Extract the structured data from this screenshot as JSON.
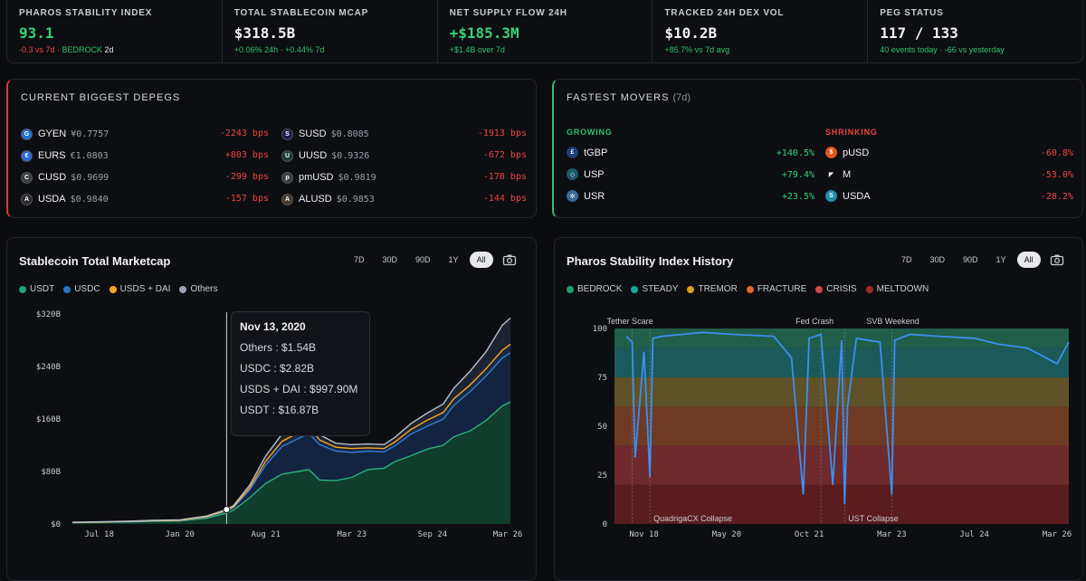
{
  "stats": [
    {
      "label": "PHAROS STABILITY INDEX",
      "value": "93.1",
      "sub_red": "-0.3 vs 7d",
      "sub_sep": " · ",
      "sub_green": "BEDROCK",
      "sub_white": " 2d"
    },
    {
      "label": "TOTAL STABLECOIN MCAP",
      "value": "$318.5B",
      "sub": "+0.06% 24h · +0.44% 7d"
    },
    {
      "label": "NET SUPPLY FLOW 24H",
      "value": "+$185.3M",
      "sub": "+$1.4B over 7d"
    },
    {
      "label": "TRACKED 24H DEX VOL",
      "value": "$10.2B",
      "sub": "+85.7% vs 7d avg"
    },
    {
      "label": "PEG STATUS",
      "value": "117 / 133",
      "sub": "40 events today · -66 vs yesterday"
    }
  ],
  "depegs": {
    "title": "CURRENT BIGGEST DEPEGS",
    "left": [
      {
        "name": "GYEN",
        "price": "¥0.7757",
        "bps": "-2243 bps",
        "icon": "gyen-icon",
        "color": "#1f6fd6",
        "glyph": "G"
      },
      {
        "name": "EURS",
        "price": "€1.0803",
        "bps": "+803 bps",
        "icon": "eurs-icon",
        "color": "#2b6cd8",
        "glyph": "€"
      },
      {
        "name": "CUSD",
        "price": "$0.9699",
        "bps": "-299 bps",
        "icon": "cusd-icon",
        "color": "#3a3d44",
        "glyph": "C"
      },
      {
        "name": "USDA",
        "price": "$0.9840",
        "bps": "-157 bps",
        "icon": "usda-icon",
        "color": "#2a2c31",
        "glyph": "A"
      }
    ],
    "right": [
      {
        "name": "SUSD",
        "price": "$0.8085",
        "bps": "-1913 bps",
        "icon": "susd-icon",
        "color": "#1c1f4a",
        "glyph": "S"
      },
      {
        "name": "UUSD",
        "price": "$0.9326",
        "bps": "-672 bps",
        "icon": "uusd-icon",
        "color": "#1e3b35",
        "glyph": "U"
      },
      {
        "name": "pmUSD",
        "price": "$0.9819",
        "bps": "-178 bps",
        "icon": "pmusd-icon",
        "color": "#3a3d44",
        "glyph": "p"
      },
      {
        "name": "ALUSD",
        "price": "$0.9853",
        "bps": "-144 bps",
        "icon": "alusd-icon",
        "color": "#4a3a30",
        "glyph": "A"
      }
    ]
  },
  "movers": {
    "title": "FASTEST MOVERS",
    "period": "(7d)",
    "growing_label": "GROWING",
    "shrinking_label": "SHRINKING",
    "growing": [
      {
        "name": "tGBP",
        "pct": "+140.5%",
        "icon": "tgbp-icon",
        "color": "#1d3f7a",
        "glyph": "£"
      },
      {
        "name": "USP",
        "pct": "+79.4%",
        "icon": "usp-icon",
        "color": "#1a5a6a",
        "glyph": "◇"
      },
      {
        "name": "USR",
        "pct": "+23.5%",
        "icon": "usr-icon",
        "color": "#3a6a9a",
        "glyph": "✲"
      }
    ],
    "shrinking": [
      {
        "name": "pUSD",
        "pct": "-60.8%",
        "icon": "pusd-icon",
        "color": "#e2541f",
        "glyph": "$"
      },
      {
        "name": "M",
        "pct": "-53.0%",
        "icon": "m-icon",
        "color": "#0d0e12",
        "glyph": "◤"
      },
      {
        "name": "USDA",
        "pct": "-28.2%",
        "icon": "usda-icon",
        "color": "#1d8fa6",
        "glyph": "S"
      }
    ]
  },
  "ranges": [
    "7D",
    "30D",
    "90D",
    "1Y",
    "All"
  ],
  "active_range": "All",
  "mcap_chart": {
    "title": "Stablecoin Total Marketcap",
    "legend": [
      {
        "name": "USDT",
        "color": "#26a17b"
      },
      {
        "name": "USDC",
        "color": "#2775ca"
      },
      {
        "name": "USDS + DAI",
        "color": "#f5a623"
      },
      {
        "name": "Others",
        "color": "#9aa3b2"
      }
    ],
    "tooltip": {
      "date": "Nov 13, 2020",
      "rows": [
        "Others : $1.54B",
        "USDC : $2.82B",
        "USDS + DAI : $997.90M",
        "USDT : $16.87B"
      ]
    }
  },
  "psi_chart": {
    "title": "Pharos Stability Index History",
    "legend": [
      {
        "name": "BEDROCK",
        "color": "#1f9d6a"
      },
      {
        "name": "STEADY",
        "color": "#1aa39a"
      },
      {
        "name": "TREMOR",
        "color": "#d4a017"
      },
      {
        "name": "FRACTURE",
        "color": "#e06a2a"
      },
      {
        "name": "CRISIS",
        "color": "#d84848"
      },
      {
        "name": "MELTDOWN",
        "color": "#a02828"
      }
    ]
  },
  "chart_data": [
    {
      "type": "area",
      "title": "Stablecoin Total Marketcap",
      "x_ticks": [
        "Jul 18",
        "Jan 20",
        "Aug 21",
        "Mar 23",
        "Sep 24",
        "Mar 26"
      ],
      "y_ticks": [
        "$0",
        "$80B",
        "$160B",
        "$240B",
        "$320B"
      ],
      "ylim": [
        0,
        320
      ],
      "x": [
        2018.0,
        2018.5,
        2019.0,
        2019.5,
        2020.0,
        2020.5,
        2020.87,
        2021.0,
        2021.3,
        2021.6,
        2021.9,
        2022.2,
        2022.4,
        2022.6,
        2022.9,
        2023.2,
        2023.5,
        2023.8,
        2024.0,
        2024.3,
        2024.6,
        2024.9,
        2025.1,
        2025.4,
        2025.7,
        2026.0,
        2026.15
      ],
      "series": [
        {
          "name": "USDT",
          "values": [
            2,
            2.5,
            3,
            4,
            4.5,
            9,
            16.87,
            21,
            40,
            62,
            76,
            80,
            83,
            67,
            66,
            71,
            83,
            85,
            95,
            104,
            114,
            120,
            133,
            142,
            158,
            180,
            186
          ]
        },
        {
          "name": "USDC",
          "values": [
            0.2,
            0.3,
            0.5,
            0.6,
            0.7,
            1.5,
            2.82,
            4,
            12,
            28,
            42,
            50,
            55,
            54,
            45,
            38,
            28,
            25,
            24,
            33,
            35,
            40,
            48,
            60,
            68,
            73,
            75
          ]
        },
        {
          "name": "USDS + DAI",
          "values": [
            0.1,
            0.1,
            0.2,
            0.3,
            0.4,
            0.6,
            0.998,
            1.2,
            3,
            6,
            8,
            9,
            10,
            7,
            6,
            6,
            5,
            5,
            6,
            7,
            9,
            10,
            10,
            10,
            11,
            12,
            13
          ]
        },
        {
          "name": "Others",
          "values": [
            0.3,
            0.4,
            0.5,
            0.6,
            0.8,
            1,
            1.54,
            2,
            4,
            8,
            11,
            13,
            14,
            8,
            6,
            6,
            6,
            6,
            7,
            9,
            11,
            13,
            16,
            21,
            26,
            38,
            40
          ]
        }
      ],
      "tooltip_at": "Nov 13, 2020"
    },
    {
      "type": "line",
      "title": "Pharos Stability Index History",
      "x_ticks": [
        "Nov 18",
        "May 20",
        "Oct 21",
        "Mar 23",
        "Jul 24",
        "Mar 26"
      ],
      "y_ticks": [
        "0",
        "25",
        "50",
        "75",
        "100"
      ],
      "ylim": [
        0,
        100
      ],
      "bands": [
        {
          "name": "MELTDOWN",
          "from": 0,
          "to": 20
        },
        {
          "name": "CRISIS",
          "from": 20,
          "to": 40
        },
        {
          "name": "FRACTURE",
          "from": 40,
          "to": 60
        },
        {
          "name": "TREMOR",
          "from": 60,
          "to": 75
        },
        {
          "name": "STEADY",
          "from": 75,
          "to": 90
        },
        {
          "name": "BEDROCK",
          "from": 90,
          "to": 100
        }
      ],
      "annotations": [
        {
          "label": "Tether Scare",
          "x": 2018.8,
          "position": "top"
        },
        {
          "label": "QuadrigaCX Collapse",
          "x": 2019.1,
          "position": "bottom"
        },
        {
          "label": "Fed Crash",
          "x": 2022.0,
          "position": "top"
        },
        {
          "label": "UST Collapse",
          "x": 2022.4,
          "position": "bottom"
        },
        {
          "label": "SVB Weekend",
          "x": 2023.2,
          "position": "top"
        }
      ],
      "x": [
        2018.7,
        2018.8,
        2018.85,
        2019.0,
        2019.1,
        2019.15,
        2019.3,
        2020.0,
        2020.5,
        2021.2,
        2021.5,
        2021.7,
        2021.8,
        2022.0,
        2022.2,
        2022.35,
        2022.4,
        2022.45,
        2022.6,
        2023.0,
        2023.2,
        2023.25,
        2023.5,
        2024.0,
        2024.6,
        2025.0,
        2025.5,
        2026.0,
        2026.2
      ],
      "values": [
        96,
        93,
        34,
        88,
        24,
        95,
        96,
        98,
        97,
        96,
        85,
        15,
        95,
        97,
        20,
        94,
        10,
        60,
        95,
        93,
        15,
        94,
        97,
        96,
        95,
        92,
        90,
        82,
        93
      ]
    }
  ]
}
